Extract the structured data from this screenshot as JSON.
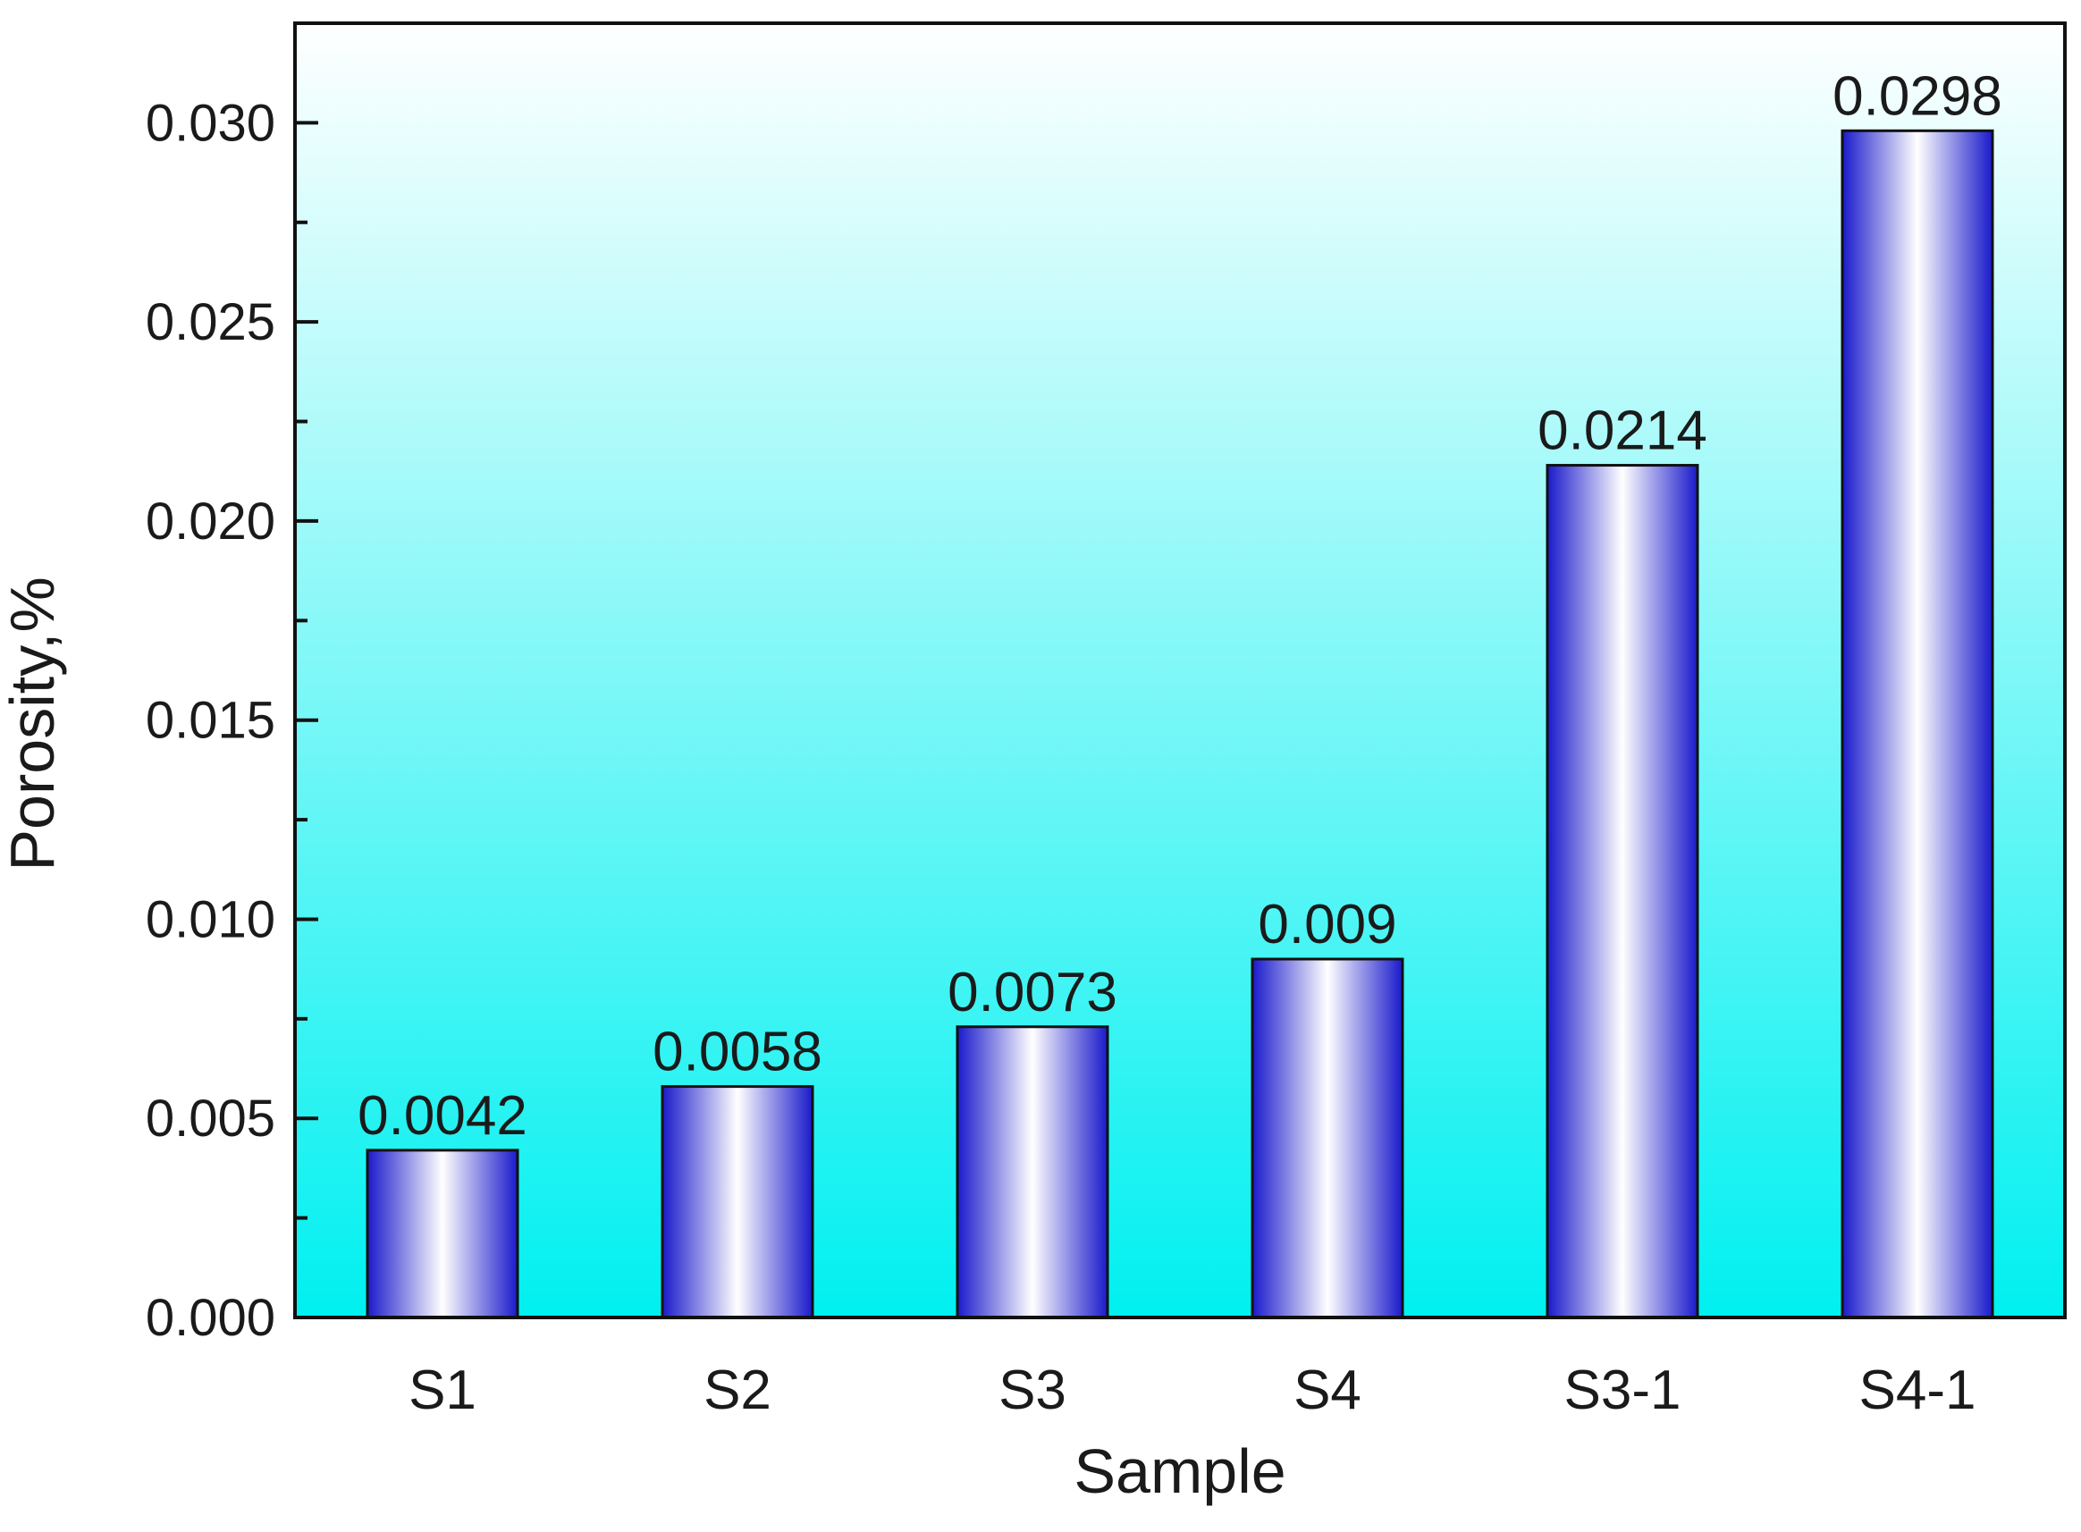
{
  "chart_data": {
    "type": "bar",
    "title": "",
    "xlabel": "Sample",
    "ylabel": "Porosity,%",
    "categories": [
      "S1",
      "S2",
      "S3",
      "S4",
      "S3-1",
      "S4-1"
    ],
    "values": [
      0.0042,
      0.0058,
      0.0073,
      0.009,
      0.0214,
      0.0298
    ],
    "value_labels": [
      "0.0042",
      "0.0058",
      "0.0073",
      "0.009",
      "0.0214",
      "0.0298"
    ],
    "ylim": [
      0,
      0.0325
    ],
    "yticks": [
      0.0,
      0.005,
      0.01,
      0.015,
      0.02,
      0.025,
      0.03
    ],
    "ytick_labels": [
      "0.000",
      "0.005",
      "0.010",
      "0.015",
      "0.020",
      "0.025",
      "0.030"
    ],
    "grid": false,
    "legend": "none",
    "colors": {
      "background_top": "#ffffff",
      "background_bottom": "#00f0f0",
      "bar_edge": "#1a1acc",
      "bar_center": "#ffffff",
      "bar_outline": "#111111",
      "axis": "#111111"
    }
  }
}
